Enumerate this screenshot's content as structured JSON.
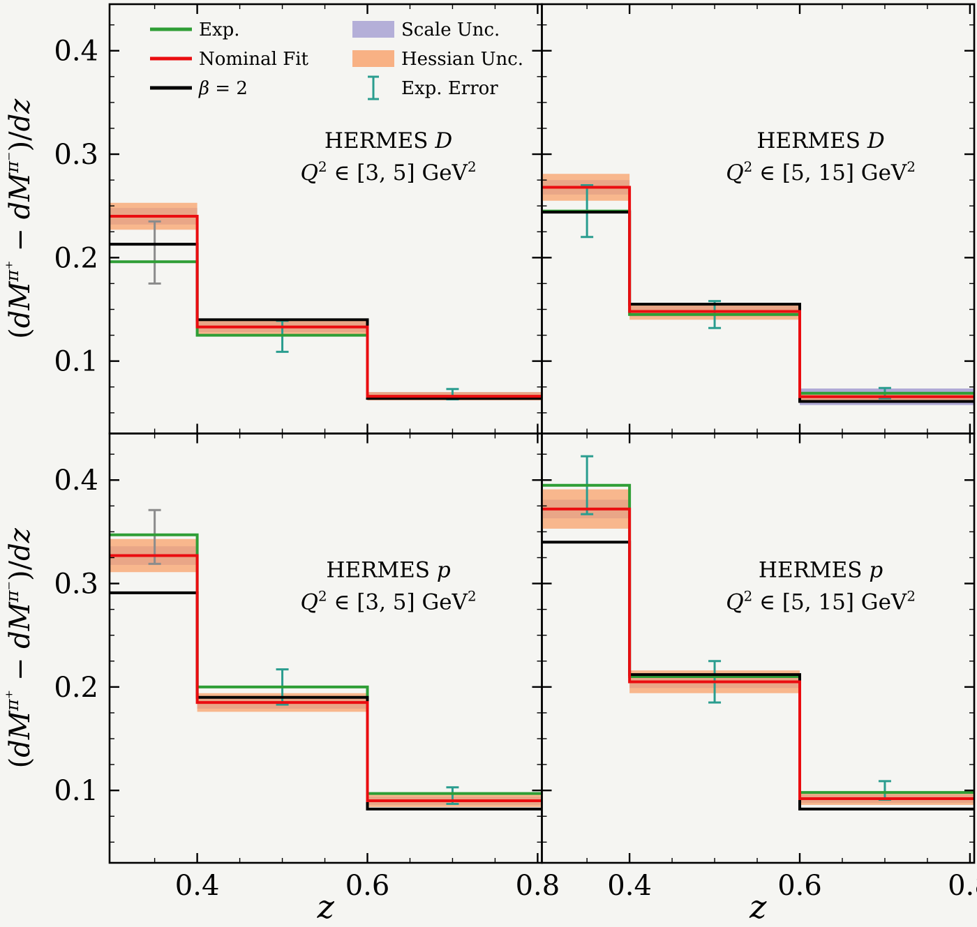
{
  "figure": {
    "bg": "#f5f5f2",
    "description": "Four-panel comparison of HERMES pion multiplicity differences vs z"
  },
  "colors": {
    "exp": "#2f9e36",
    "nominal": "#ea0d10",
    "beta2": "#000000",
    "scale": "#a8a2d3",
    "hessian": "#f8a571",
    "exp_error": "#2a9d8f",
    "gray_error": "#8c8c8c",
    "axis": "#000000"
  },
  "legend": {
    "items": [
      {
        "id": "exp",
        "type": "line",
        "color_key": "exp",
        "label_segments": [
          {
            "t": "Exp."
          }
        ]
      },
      {
        "id": "nominal",
        "type": "line",
        "color_key": "nominal",
        "label_segments": [
          {
            "t": "Nominal Fit"
          }
        ]
      },
      {
        "id": "beta2",
        "type": "line",
        "color_key": "beta2",
        "label_segments": [
          {
            "t": "β",
            "it": true
          },
          {
            "t": " = 2"
          }
        ]
      },
      {
        "id": "scale",
        "type": "band",
        "color_key": "scale",
        "label_segments": [
          {
            "t": "Scale Unc."
          }
        ]
      },
      {
        "id": "hessian",
        "type": "band",
        "color_key": "hessian",
        "label_segments": [
          {
            "t": "Hessian Unc."
          }
        ]
      },
      {
        "id": "experr",
        "type": "errorbar",
        "color_key": "exp_error",
        "label_segments": [
          {
            "t": "Exp. Error"
          }
        ]
      }
    ]
  },
  "axes": {
    "xlabel_segments": [
      {
        "t": "z",
        "it": true
      }
    ],
    "ylabel_segments": [
      {
        "t": "("
      },
      {
        "t": "dM",
        "it": true
      },
      {
        "t": "π⁺",
        "sup": true,
        "it": true
      },
      {
        "t": " − "
      },
      {
        "t": "dM",
        "it": true
      },
      {
        "t": "π⁻",
        "sup": true,
        "it": true
      },
      {
        "t": ")/"
      },
      {
        "t": "dz",
        "it": true
      }
    ],
    "x_ticks": [
      0.4,
      0.6,
      0.8
    ],
    "x_tick_labels": [
      "0.4",
      "0.6",
      "0.8"
    ],
    "x_minor_ticks": [
      0.35,
      0.45,
      0.5,
      0.55,
      0.65,
      0.7,
      0.75
    ],
    "y_ticks": [
      0.1,
      0.2,
      0.3,
      0.4
    ],
    "y_tick_labels": [
      "0.1",
      "0.2",
      "0.3",
      "0.4"
    ],
    "y_minor_ticks": [
      0.05,
      0.075,
      0.125,
      0.15,
      0.175,
      0.225,
      0.25,
      0.275,
      0.325,
      0.35,
      0.375,
      0.425
    ],
    "x_range": [
      0.297,
      0.805
    ],
    "y_range": [
      0.03,
      0.445
    ]
  },
  "chart_data": [
    {
      "id": "hermes-d-q2-3-5",
      "type": "bar",
      "style": "step-histogram",
      "title_segments": [
        {
          "t": "HERMES "
        },
        {
          "t": "D",
          "it": true
        }
      ],
      "subtitle_segments": [
        {
          "t": "Q",
          "it": true
        },
        {
          "t": "2",
          "sup": true
        },
        {
          "t": " ∈ [3, 5] GeV"
        },
        {
          "t": "2",
          "sup": true
        }
      ],
      "bin_edges": [
        0.3,
        0.4,
        0.6,
        0.8
      ],
      "series": {
        "exp": [
          0.196,
          0.125,
          0.065
        ],
        "nominal": [
          0.24,
          0.133,
          0.066
        ],
        "beta2": [
          0.213,
          0.14,
          0.064
        ]
      },
      "bands": {
        "scale_half": [
          0.008,
          0.005,
          0.004
        ],
        "hessian_half": [
          0.013,
          0.007,
          0.004
        ]
      },
      "error_bars": [
        {
          "x": 0.35,
          "y": 0.205,
          "err": 0.03,
          "color": "gray"
        },
        {
          "x": 0.5,
          "y": 0.124,
          "err": 0.015,
          "color": "teal"
        },
        {
          "x": 0.7,
          "y": 0.068,
          "err": 0.005,
          "color": "teal"
        }
      ]
    },
    {
      "id": "hermes-d-q2-5-15",
      "type": "bar",
      "style": "step-histogram",
      "title_segments": [
        {
          "t": "HERMES "
        },
        {
          "t": "D",
          "it": true
        }
      ],
      "subtitle_segments": [
        {
          "t": "Q",
          "it": true
        },
        {
          "t": "2",
          "sup": true
        },
        {
          "t": " ∈ [5, 15] GeV"
        },
        {
          "t": "2",
          "sup": true
        }
      ],
      "bin_edges": [
        0.3,
        0.4,
        0.6,
        0.8
      ],
      "series": {
        "exp": [
          0.245,
          0.145,
          0.069
        ],
        "nominal": [
          0.268,
          0.148,
          0.0655
        ],
        "beta2": [
          0.244,
          0.155,
          0.061
        ]
      },
      "bands": {
        "scale_half": [
          0.007,
          0.005,
          0.008
        ],
        "hessian_half": [
          0.013,
          0.008,
          0.004
        ]
      },
      "error_bars": [
        {
          "x": 0.35,
          "y": 0.245,
          "err": 0.025,
          "color": "teal"
        },
        {
          "x": 0.5,
          "y": 0.145,
          "err": 0.013,
          "color": "teal"
        },
        {
          "x": 0.7,
          "y": 0.069,
          "err": 0.005,
          "color": "teal"
        }
      ]
    },
    {
      "id": "hermes-p-q2-3-5",
      "type": "bar",
      "style": "step-histogram",
      "title_segments": [
        {
          "t": "HERMES "
        },
        {
          "t": "p",
          "it": true
        }
      ],
      "subtitle_segments": [
        {
          "t": "Q",
          "it": true
        },
        {
          "t": "2",
          "sup": true
        },
        {
          "t": " ∈ [3, 5] GeV"
        },
        {
          "t": "2",
          "sup": true
        }
      ],
      "bin_edges": [
        0.3,
        0.4,
        0.6,
        0.8
      ],
      "series": {
        "exp": [
          0.347,
          0.2,
          0.097
        ],
        "nominal": [
          0.327,
          0.185,
          0.09
        ],
        "beta2": [
          0.291,
          0.19,
          0.082
        ]
      },
      "bands": {
        "scale_half": [
          0.009,
          0.006,
          0.004
        ],
        "hessian_half": [
          0.016,
          0.009,
          0.006
        ]
      },
      "error_bars": [
        {
          "x": 0.35,
          "y": 0.345,
          "err": 0.026,
          "color": "gray"
        },
        {
          "x": 0.5,
          "y": 0.2,
          "err": 0.017,
          "color": "teal"
        },
        {
          "x": 0.7,
          "y": 0.095,
          "err": 0.008,
          "color": "teal"
        }
      ]
    },
    {
      "id": "hermes-p-q2-5-15",
      "type": "bar",
      "style": "step-histogram",
      "title_segments": [
        {
          "t": "HERMES "
        },
        {
          "t": "p",
          "it": true
        }
      ],
      "subtitle_segments": [
        {
          "t": "Q",
          "it": true
        },
        {
          "t": "2",
          "sup": true
        },
        {
          "t": " ∈ [5, 15] GeV"
        },
        {
          "t": "2",
          "sup": true
        }
      ],
      "bin_edges": [
        0.3,
        0.4,
        0.6,
        0.8
      ],
      "series": {
        "exp": [
          0.395,
          0.21,
          0.098
        ],
        "nominal": [
          0.372,
          0.205,
          0.092
        ],
        "beta2": [
          0.34,
          0.212,
          0.082
        ]
      },
      "bands": {
        "scale_half": [
          0.009,
          0.006,
          0.004
        ],
        "hessian_half": [
          0.019,
          0.011,
          0.006
        ]
      },
      "error_bars": [
        {
          "x": 0.35,
          "y": 0.395,
          "err": 0.028,
          "color": "teal"
        },
        {
          "x": 0.5,
          "y": 0.205,
          "err": 0.02,
          "color": "teal"
        },
        {
          "x": 0.7,
          "y": 0.1,
          "err": 0.009,
          "color": "teal"
        }
      ]
    }
  ]
}
